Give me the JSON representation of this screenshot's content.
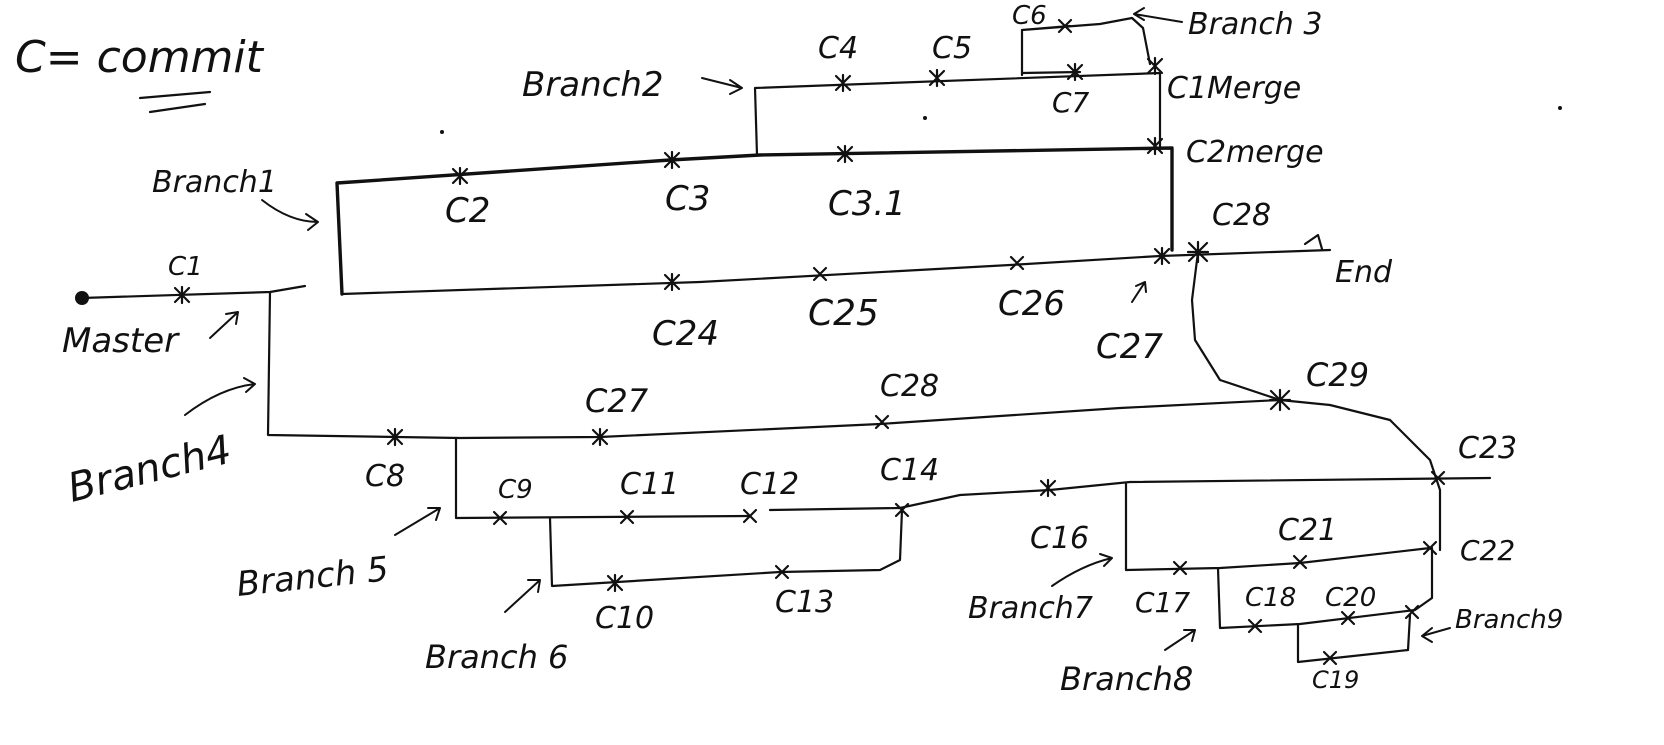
{
  "legend": {
    "text": "C= commit"
  },
  "branches": {
    "master": "Master",
    "branch1": "Branch1",
    "branch2": "Branch2",
    "branch3": "Branch 3",
    "branch4": "Branch4",
    "branch5": "Branch 5",
    "branch6": "Branch 6",
    "branch7": "Branch7",
    "branch8": "Branch8",
    "branch9": "Branch9",
    "end": "End"
  },
  "commits": {
    "c1": "C1",
    "c2": "C2",
    "c3": "C3",
    "c3_1": "C3.1",
    "c4": "C4",
    "c5": "C5",
    "c6": "C6",
    "c7": "C7",
    "c1merge": "C1Merge",
    "c2merge": "C2merge",
    "c8": "C8",
    "c9": "C9",
    "c10": "C10",
    "c11": "C11",
    "c12": "C12",
    "c13": "C13",
    "c14": "C14",
    "c16": "C16",
    "c17": "C17",
    "c18": "C18",
    "c19": "C19",
    "c20": "C20",
    "c21": "C21",
    "c22": "C22",
    "c23": "C23",
    "c24": "C24",
    "c25": "C25",
    "c26": "C26",
    "c27_top": "C27",
    "c27_mid": "C27",
    "c28_top": "C28",
    "c28_mid": "C28",
    "c29": "C29"
  }
}
